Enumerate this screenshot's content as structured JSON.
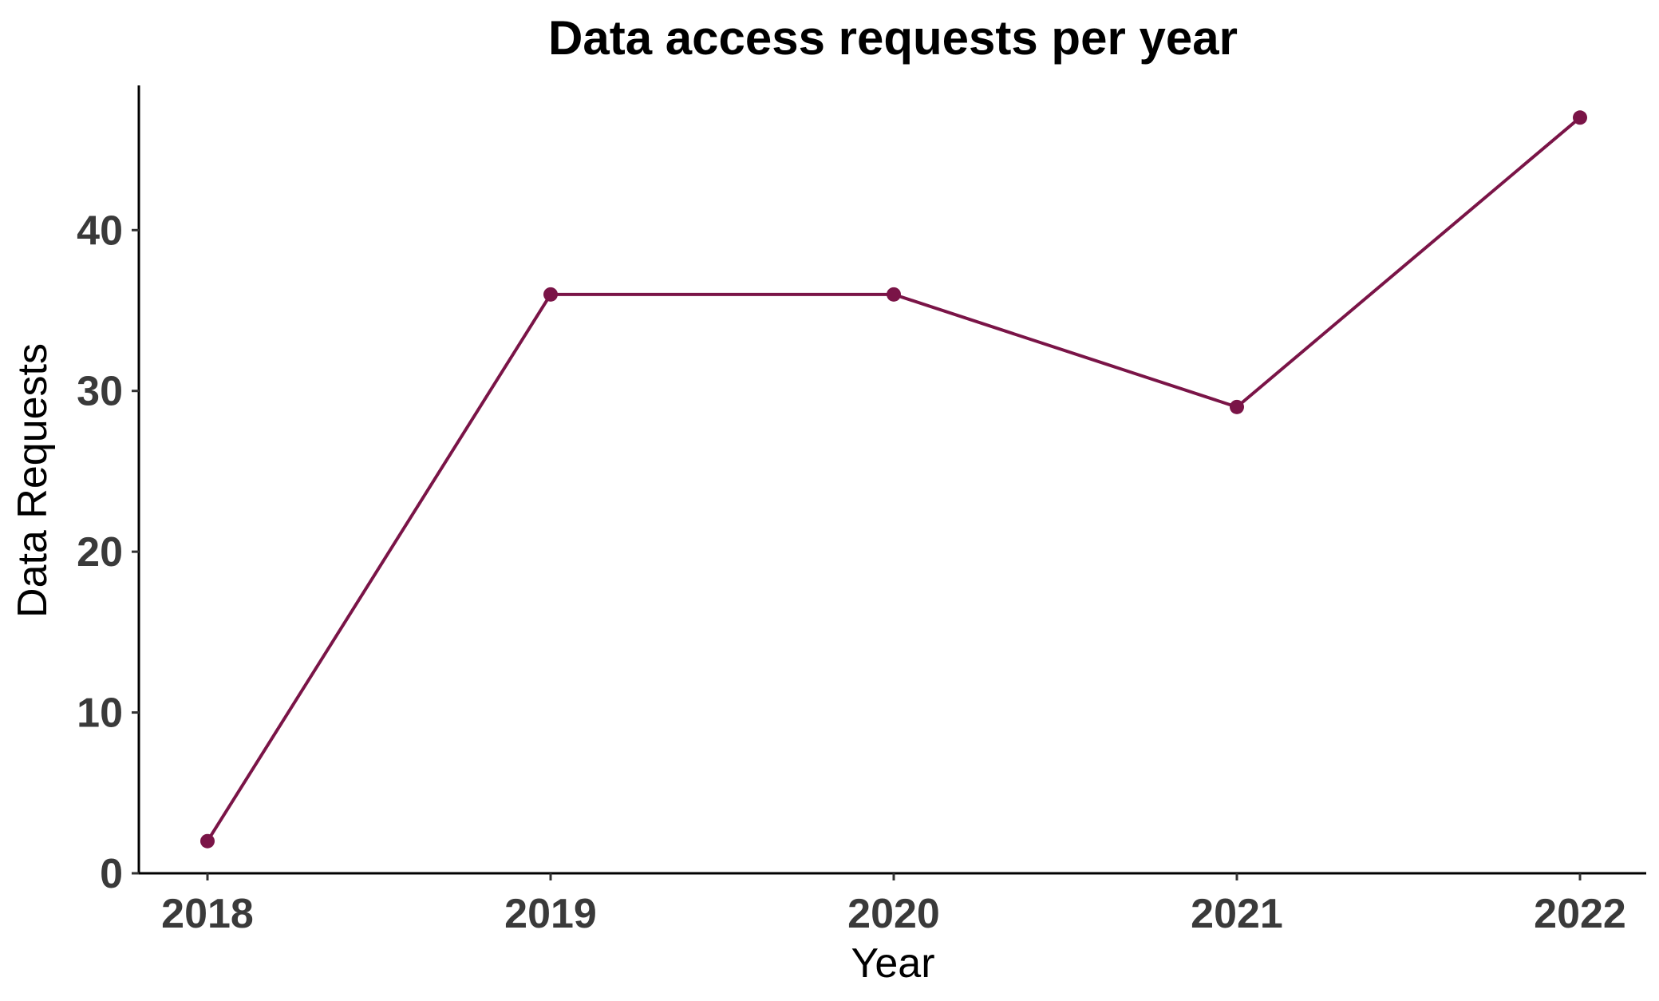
{
  "chart_data": {
    "type": "line",
    "title": "Data access requests per year",
    "xlabel": "Year",
    "ylabel": "Data Requests",
    "x": [
      "2018",
      "2019",
      "2020",
      "2021",
      "2022"
    ],
    "series": [
      {
        "values": [
          2,
          36,
          36,
          29,
          47
        ],
        "color": "#7a1447"
      }
    ],
    "yticks": [
      "0",
      "10",
      "20",
      "30",
      "40"
    ],
    "ylim": [
      0,
      49
    ],
    "grid": false,
    "legend": "none"
  }
}
